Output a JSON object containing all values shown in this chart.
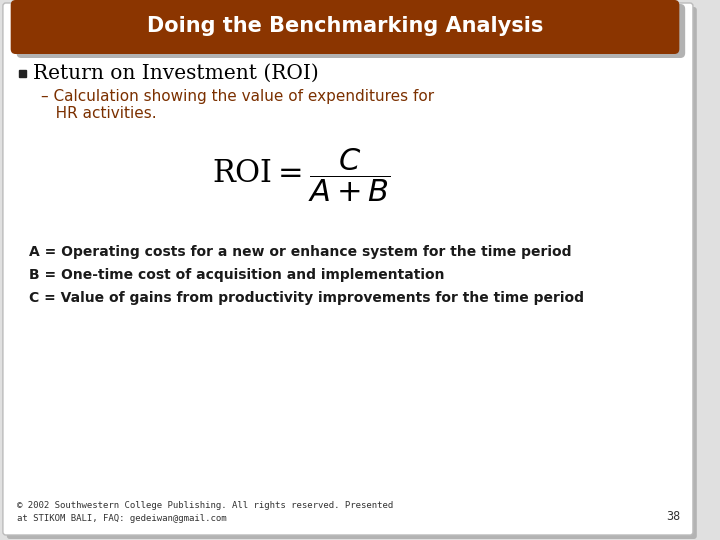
{
  "title": "Doing the Benchmarking Analysis",
  "title_bg_color": "#8B3500",
  "title_text_color": "#FFFFFF",
  "bullet_text": "Return on Investment (ROI)",
  "bullet_color": "#000000",
  "sub_bullet_line1": "– Calculation showing the value of expenditures for",
  "sub_bullet_line2": "   HR activities.",
  "sub_bullet_color": "#7B3000",
  "formula_color": "#000000",
  "line_a": "A = Operating costs for a new or enhance system for the time period",
  "line_b": "B = One-time cost of acquisition and implementation",
  "line_c": "C = Value of gains from productivity improvements for the time period",
  "lines_color": "#1a1a1a",
  "footer_text": "© 2002 Southwestern College Publishing. All rights reserved. Presented\nat STIKOM BALI, FAQ: gedeiwan@gmail.com",
  "page_number": "38",
  "bg_color": "#FFFFFF",
  "shadow_color": "#888888",
  "border_color": "#BBBBBB"
}
